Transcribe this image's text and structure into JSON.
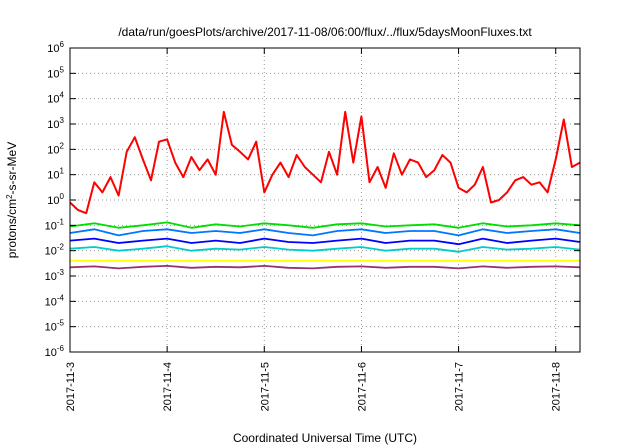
{
  "chart_data": {
    "type": "line",
    "title": "/data/run/goesPlots/archive/2017-11-08/06:00/flux/../flux/5daysMoonFluxes.txt",
    "xlabel": "Coordinated Universal Time (UTC)",
    "ylabel_parts": {
      "base": "protons/cm",
      "sup": "2",
      "rest": "-s-sr-MeV"
    },
    "yscale": "log",
    "ylim": [
      1e-06,
      1000000.0
    ],
    "xlim": [
      "2017-11-03 00:00",
      "2017-11-08 06:00"
    ],
    "grid": true,
    "y_ticks": [
      {
        "base": "10",
        "exp": "-6"
      },
      {
        "base": "10",
        "exp": "-5"
      },
      {
        "base": "10",
        "exp": "-4"
      },
      {
        "base": "10",
        "exp": "-3"
      },
      {
        "base": "10",
        "exp": "-2"
      },
      {
        "base": "10",
        "exp": "-1"
      },
      {
        "base": "10",
        "exp": "0"
      },
      {
        "base": "10",
        "exp": "1"
      },
      {
        "base": "10",
        "exp": "2"
      },
      {
        "base": "10",
        "exp": "3"
      },
      {
        "base": "10",
        "exp": "4"
      },
      {
        "base": "10",
        "exp": "5"
      },
      {
        "base": "10",
        "exp": "6"
      }
    ],
    "x_ticks": [
      "2017-11-3",
      "2017-11-4",
      "2017-11-5",
      "2017-11-6",
      "2017-11-7",
      "2017-11-8"
    ],
    "series": [
      {
        "color": "#ff0000",
        "x_hours": [
          0,
          2,
          4,
          6,
          8,
          10,
          12,
          14,
          16,
          18,
          20,
          22,
          24,
          26,
          28,
          30,
          32,
          34,
          36,
          38,
          40,
          42,
          44,
          46,
          48,
          50,
          52,
          54,
          56,
          58,
          60,
          62,
          64,
          66,
          68,
          70,
          72,
          74,
          76,
          78,
          80,
          82,
          84,
          86,
          88,
          90,
          92,
          94,
          96,
          98,
          100,
          102,
          104,
          106,
          108,
          110,
          112,
          114,
          116,
          118,
          120,
          122,
          124,
          126
        ],
        "values": [
          0.8,
          0.4,
          0.3,
          5,
          2,
          8,
          1.5,
          80,
          300,
          40,
          6,
          200,
          250,
          30,
          8,
          50,
          15,
          40,
          10,
          3000,
          150,
          80,
          40,
          200,
          2,
          10,
          30,
          8,
          60,
          20,
          10,
          5,
          80,
          10,
          3000,
          30,
          2000,
          5,
          20,
          3,
          70,
          10,
          40,
          30,
          8,
          15,
          60,
          30,
          3,
          2,
          4,
          20,
          0.8,
          1,
          2,
          6,
          8,
          4,
          5,
          2,
          40,
          1500,
          20,
          30
        ]
      },
      {
        "color": "#00dd00",
        "x_hours": [
          0,
          6,
          12,
          18,
          24,
          30,
          36,
          42,
          48,
          54,
          60,
          66,
          72,
          78,
          84,
          90,
          96,
          102,
          108,
          114,
          120,
          126
        ],
        "values": [
          0.09,
          0.12,
          0.08,
          0.1,
          0.13,
          0.08,
          0.11,
          0.09,
          0.12,
          0.1,
          0.08,
          0.11,
          0.12,
          0.09,
          0.1,
          0.11,
          0.08,
          0.12,
          0.09,
          0.1,
          0.12,
          0.1
        ]
      },
      {
        "color": "#0077ff",
        "x_hours": [
          0,
          6,
          12,
          18,
          24,
          30,
          36,
          42,
          48,
          54,
          60,
          66,
          72,
          78,
          84,
          90,
          96,
          102,
          108,
          114,
          120,
          126
        ],
        "values": [
          0.05,
          0.07,
          0.04,
          0.06,
          0.07,
          0.05,
          0.06,
          0.05,
          0.07,
          0.05,
          0.04,
          0.06,
          0.07,
          0.05,
          0.06,
          0.06,
          0.04,
          0.07,
          0.05,
          0.06,
          0.07,
          0.05
        ]
      },
      {
        "color": "#0000ff",
        "x_hours": [
          0,
          6,
          12,
          18,
          24,
          30,
          36,
          42,
          48,
          54,
          60,
          66,
          72,
          78,
          84,
          90,
          96,
          102,
          108,
          114,
          120,
          126
        ],
        "values": [
          0.025,
          0.03,
          0.02,
          0.025,
          0.03,
          0.02,
          0.025,
          0.02,
          0.03,
          0.022,
          0.02,
          0.025,
          0.03,
          0.02,
          0.025,
          0.025,
          0.018,
          0.03,
          0.02,
          0.025,
          0.03,
          0.022
        ]
      },
      {
        "color": "#00cccc",
        "x_hours": [
          0,
          6,
          12,
          18,
          24,
          30,
          36,
          42,
          48,
          54,
          60,
          66,
          72,
          78,
          84,
          90,
          96,
          102,
          108,
          114,
          120,
          126
        ],
        "values": [
          0.012,
          0.014,
          0.01,
          0.012,
          0.015,
          0.01,
          0.012,
          0.011,
          0.014,
          0.011,
          0.01,
          0.012,
          0.014,
          0.01,
          0.012,
          0.012,
          0.009,
          0.014,
          0.011,
          0.012,
          0.014,
          0.011
        ]
      },
      {
        "color": "#ffff00",
        "x_hours": [
          0,
          6,
          12,
          18,
          24,
          30,
          36,
          42,
          48,
          54,
          60,
          66,
          72,
          78,
          84,
          90,
          96,
          102,
          108,
          114,
          120,
          126
        ],
        "values": [
          0.004,
          0.004,
          0.004,
          0.004,
          0.004,
          0.004,
          0.004,
          0.004,
          0.004,
          0.004,
          0.004,
          0.004,
          0.004,
          0.004,
          0.004,
          0.004,
          0.004,
          0.004,
          0.004,
          0.004,
          0.004,
          0.004
        ]
      },
      {
        "color": "#993366",
        "x_hours": [
          0,
          6,
          12,
          18,
          24,
          30,
          36,
          42,
          48,
          54,
          60,
          66,
          72,
          78,
          84,
          90,
          96,
          102,
          108,
          114,
          120,
          126
        ],
        "values": [
          0.0022,
          0.0024,
          0.002,
          0.0023,
          0.0025,
          0.0021,
          0.0023,
          0.0022,
          0.0025,
          0.0021,
          0.002,
          0.0023,
          0.0024,
          0.0021,
          0.0023,
          0.0023,
          0.002,
          0.0024,
          0.0021,
          0.0023,
          0.0024,
          0.0022
        ]
      }
    ]
  }
}
